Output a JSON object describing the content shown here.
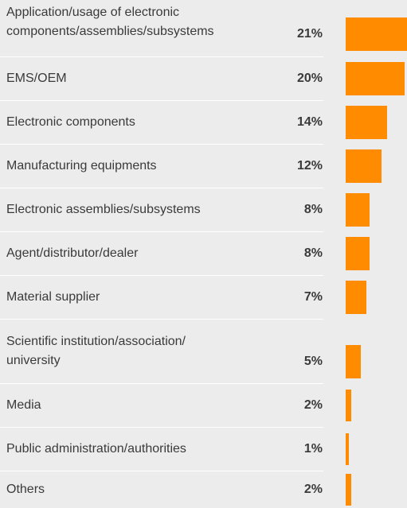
{
  "chart_data": {
    "type": "bar",
    "orientation": "horizontal",
    "bar_color": "#ff8c00",
    "categories": [
      "Application/usage of electronic components/assemblies/subsystems",
      "EMS/OEM",
      "Electronic components",
      "Manufacturing equipments",
      "Electronic assemblies/subsystems",
      "Agent/distributor/dealer",
      "Material supplier",
      "Scientific institution/association/ university",
      "Media",
      "Public administration/authorities",
      "Others"
    ],
    "category_lines": [
      [
        "Application/usage of electronic",
        "components/assemblies/subsystems"
      ],
      [
        "EMS/OEM"
      ],
      [
        "Electronic components"
      ],
      [
        "Manufacturing equipments"
      ],
      [
        "Electronic assemblies/subsystems"
      ],
      [
        "Agent/distributor/dealer"
      ],
      [
        "Material supplier"
      ],
      [
        "Scientific institution/association/",
        "university"
      ],
      [
        "Media"
      ],
      [
        "Public administration/authorities"
      ],
      [
        "Others"
      ]
    ],
    "value_labels": [
      "21%",
      "20%",
      "14%",
      "12%",
      "8%",
      "8%",
      "7%",
      "5%",
      "2%",
      "1%",
      "2%"
    ],
    "values": [
      21,
      20,
      14,
      12,
      8,
      8,
      7,
      5,
      2,
      1,
      2
    ],
    "unit": "%"
  }
}
